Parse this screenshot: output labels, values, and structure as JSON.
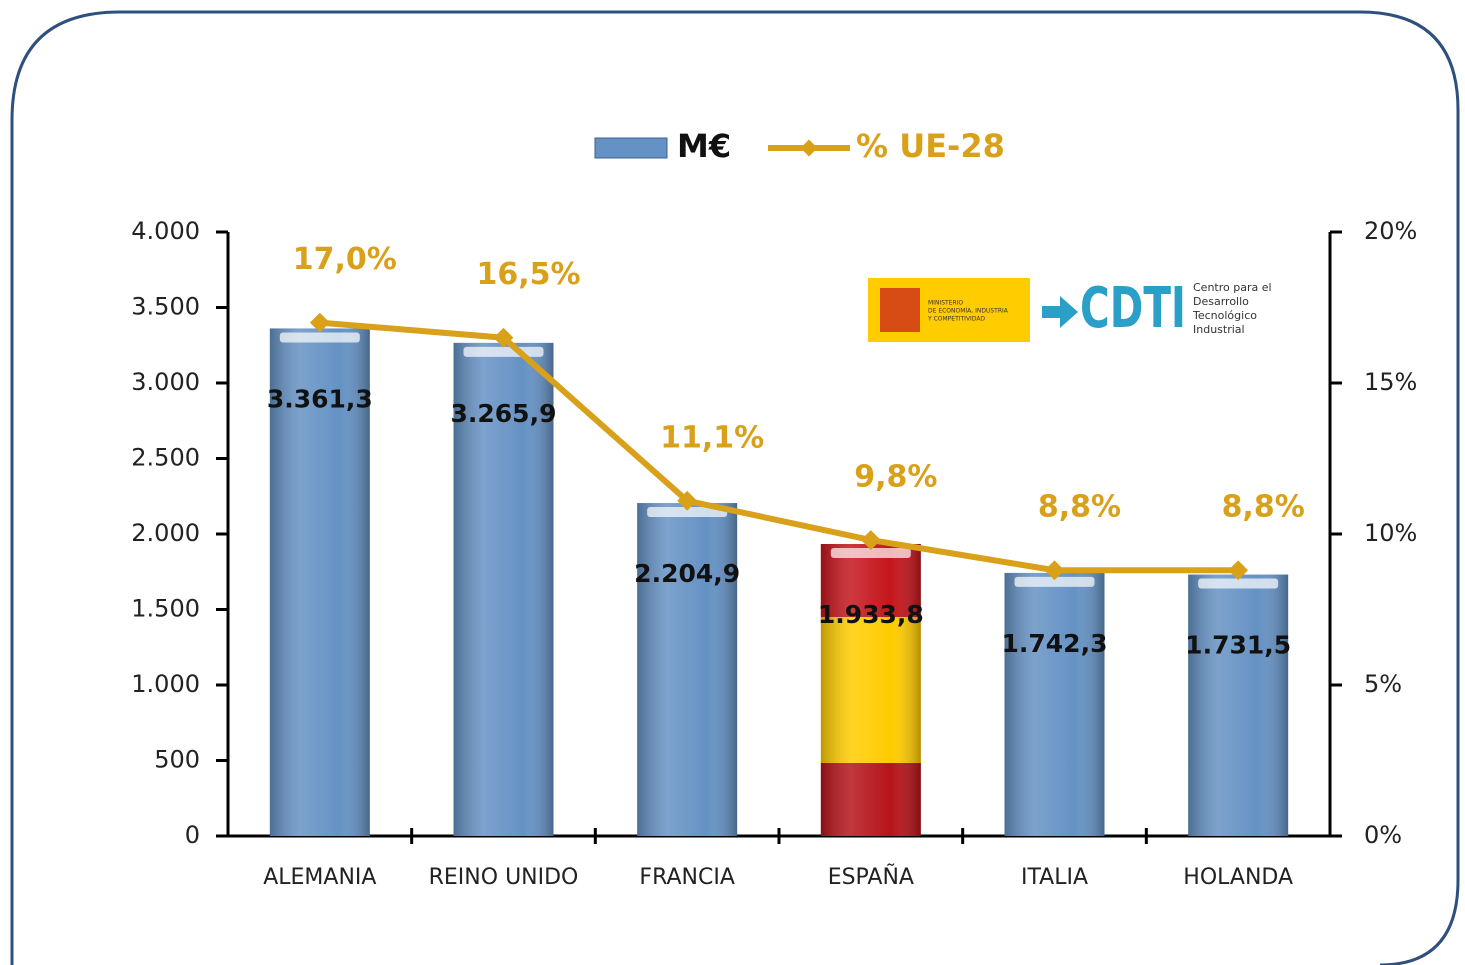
{
  "chart_data": {
    "type": "bar",
    "categories": [
      "ALEMANIA",
      "REINO UNIDO",
      "FRANCIA",
      "ESPAÑA",
      "ITALIA",
      "HOLANDA"
    ],
    "series": [
      {
        "name": "M€",
        "type": "bar",
        "color": "#6592c4",
        "colors": [
          "#6592c4",
          "#6592c4",
          "#6592c4",
          "url(#spain)",
          "#6592c4",
          "#6592c4"
        ],
        "values": [
          3361.3,
          3265.9,
          2204.9,
          1933.8,
          1742.3,
          1731.5
        ],
        "value_labels": [
          "3.361,3",
          "3.265,9",
          "2.204,9",
          "1.933,8",
          "1.742,3",
          "1.731,5"
        ]
      },
      {
        "name": "% UE-28",
        "type": "line",
        "axis": "y2",
        "color": "#d9a01a",
        "values": [
          17.0,
          16.5,
          11.1,
          9.8,
          8.8,
          8.8
        ],
        "value_labels": [
          "17,0%",
          "16,5%",
          "11,1%",
          "9,8%",
          "8,8%",
          "8,8%"
        ]
      }
    ],
    "ylim": [
      0,
      4000
    ],
    "yticks": [
      0,
      500,
      {
        "value": 1000,
        "label": "1.000"
      },
      {
        "value": 1500,
        "label": "1.500"
      },
      {
        "value": 2000,
        "label": "2.000"
      },
      {
        "value": 2500,
        "label": "2.500"
      },
      {
        "value": 3000,
        "label": "3.000"
      },
      {
        "value": 3500,
        "label": "3.500"
      },
      {
        "value": 4000,
        "label": "4.000"
      }
    ],
    "y2lim": [
      0,
      20
    ],
    "y2ticks": [
      {
        "value": 0,
        "label": "0%"
      },
      {
        "value": 5,
        "label": "5%"
      },
      {
        "value": 10,
        "label": "10%"
      },
      {
        "value": 15,
        "label": "15%"
      },
      {
        "value": 20,
        "label": "20%"
      }
    ],
    "legend": "top"
  },
  "logo": {
    "ministry": [
      "MINISTERIO",
      "DE ECONOMÍA, INDUSTRIA",
      "Y COMPETITIVIDAD"
    ],
    "brand": "CDTI",
    "brand_text": [
      "Centro para el",
      "Desarrollo",
      "Tecnológico",
      "Industrial"
    ]
  }
}
